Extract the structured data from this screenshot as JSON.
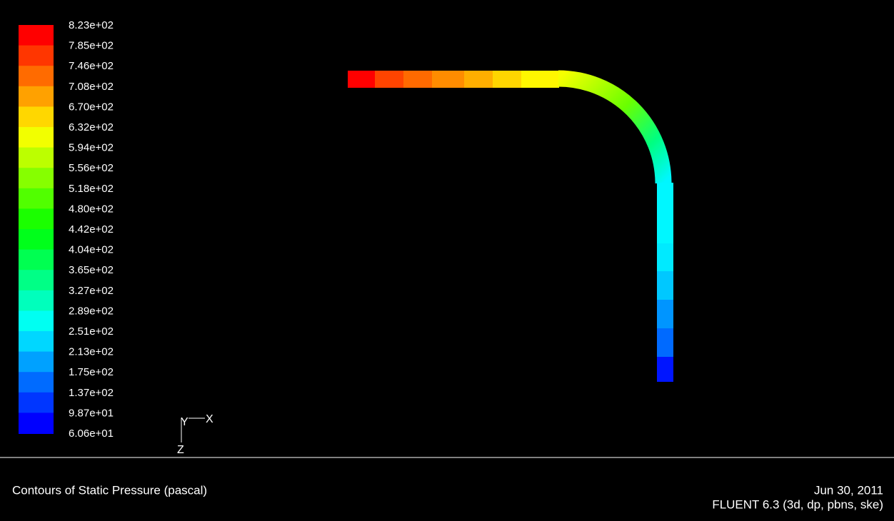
{
  "legend": {
    "labels": [
      "8.23e+02",
      "7.85e+02",
      "7.46e+02",
      "7.08e+02",
      "6.70e+02",
      "6.32e+02",
      "5.94e+02",
      "5.56e+02",
      "5.18e+02",
      "4.80e+02",
      "4.42e+02",
      "4.04e+02",
      "3.65e+02",
      "3.27e+02",
      "2.89e+02",
      "2.51e+02",
      "2.13e+02",
      "1.75e+02",
      "1.37e+02",
      "9.87e+01",
      "6.06e+01"
    ]
  },
  "axes": {
    "x": "X",
    "y": "Y",
    "z": "Z"
  },
  "footer": {
    "title": "Contours of Static Pressure (pascal)",
    "date": "Jun 30, 2011",
    "software": "FLUENT 6.3 (3d, dp, pbns, ske)"
  }
}
